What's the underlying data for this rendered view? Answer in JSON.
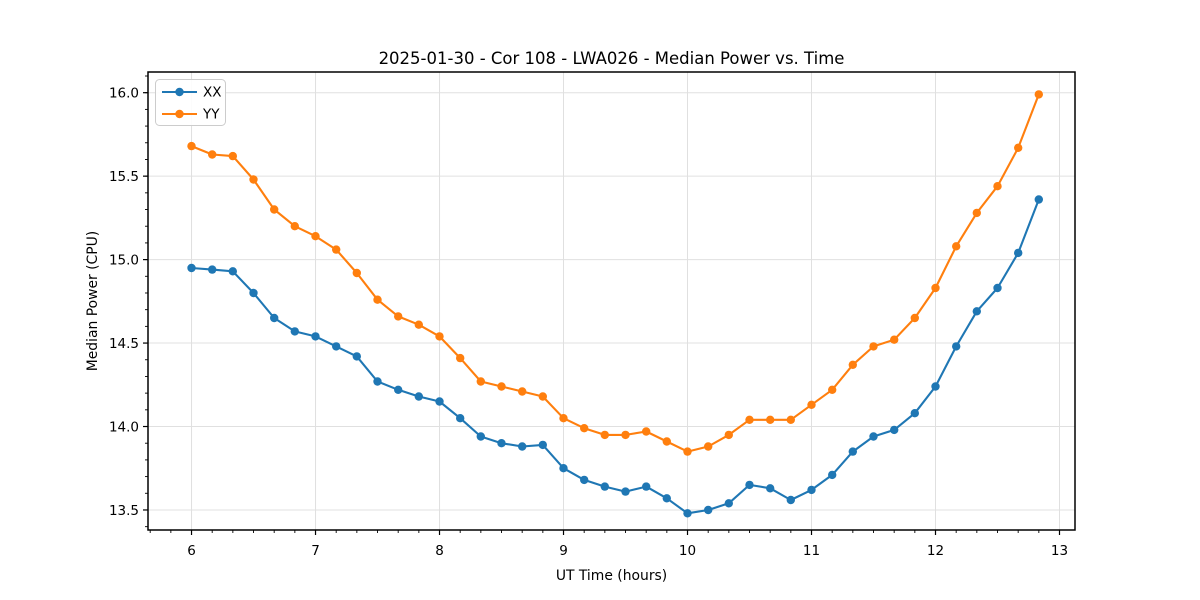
{
  "chart_data": {
    "type": "line",
    "title": "2025-01-30 - Cor 108 - LWA026 - Median Power vs. Time",
    "xlabel": "UT Time (hours)",
    "ylabel": "Median Power (CPU)",
    "legend_position": "upper left",
    "grid": true,
    "xlim": [
      5.649,
      13.125
    ],
    "ylim": [
      13.38,
      16.124
    ],
    "xticks": [
      6,
      7,
      8,
      9,
      10,
      11,
      12,
      13
    ],
    "xtick_labels": [
      "6",
      "7",
      "8",
      "9",
      "10",
      "11",
      "12",
      "13"
    ],
    "yticks": [
      13.5,
      14.0,
      14.5,
      15.0,
      15.5,
      16.0
    ],
    "ytick_labels": [
      "13.5",
      "14.0",
      "14.5",
      "15.0",
      "15.5",
      "16.0"
    ],
    "x_minor_step": 0.1666667,
    "y_minor_step": 0.1,
    "x": [
      6.0,
      6.167,
      6.333,
      6.5,
      6.667,
      6.833,
      7.0,
      7.167,
      7.333,
      7.5,
      7.667,
      7.833,
      8.0,
      8.167,
      8.333,
      8.5,
      8.667,
      8.833,
      9.0,
      9.167,
      9.333,
      9.5,
      9.667,
      9.833,
      10.0,
      10.167,
      10.333,
      10.5,
      10.667,
      10.833,
      11.0,
      11.167,
      11.333,
      11.5,
      11.667,
      11.833,
      12.0,
      12.167,
      12.333,
      12.5,
      12.667,
      12.833
    ],
    "series": [
      {
        "name": "XX",
        "color": "#1f77b4",
        "values": [
          14.95,
          14.94,
          14.93,
          14.8,
          14.65,
          14.57,
          14.54,
          14.48,
          14.42,
          14.27,
          14.22,
          14.18,
          14.15,
          14.05,
          13.94,
          13.9,
          13.88,
          13.89,
          13.75,
          13.68,
          13.64,
          13.61,
          13.64,
          13.57,
          13.48,
          13.5,
          13.54,
          13.65,
          13.63,
          13.56,
          13.62,
          13.71,
          13.85,
          13.94,
          13.98,
          14.08,
          14.24,
          14.48,
          14.69,
          14.83,
          15.04,
          15.36
        ]
      },
      {
        "name": "YY",
        "color": "#ff7f0e",
        "values": [
          15.68,
          15.63,
          15.62,
          15.48,
          15.3,
          15.2,
          15.14,
          15.06,
          14.92,
          14.76,
          14.66,
          14.61,
          14.54,
          14.41,
          14.27,
          14.24,
          14.21,
          14.18,
          14.05,
          13.99,
          13.95,
          13.95,
          13.97,
          13.91,
          13.85,
          13.88,
          13.95,
          14.04,
          14.04,
          14.04,
          14.13,
          14.22,
          14.37,
          14.48,
          14.52,
          14.65,
          14.83,
          15.08,
          15.28,
          15.44,
          15.67,
          15.99
        ]
      }
    ],
    "colors": {
      "grid": "#e0e0e0",
      "spine": "#000000",
      "legend_border": "#cccccc",
      "background": "#ffffff"
    }
  }
}
